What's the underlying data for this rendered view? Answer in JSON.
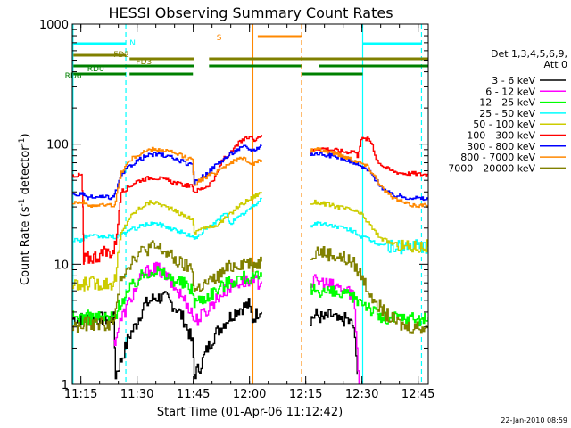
{
  "chart_data": {
    "type": "line",
    "title": "HESSI Observing Summary Count Rates",
    "xlabel": "Start Time (01-Apr-06 11:12:42)",
    "ylabel_main": "Count Rate (s",
    "ylabel_sup": "-1",
    "ylabel_mid": " detector",
    "ylabel_sup2": "-1",
    "ylabel_end": ")",
    "footer": "22-Jan-2010 08:59",
    "y_scale": "log",
    "ylim": [
      1,
      1000
    ],
    "xlim_min": [
      0,
      95
    ],
    "x_ticks": [
      {
        "m": 2.3,
        "label": "11:15"
      },
      {
        "m": 17.3,
        "label": "11:30"
      },
      {
        "m": 32.3,
        "label": "11:45"
      },
      {
        "m": 47.3,
        "label": "12:00"
      },
      {
        "m": 62.3,
        "label": "12:15"
      },
      {
        "m": 77.3,
        "label": "12:30"
      },
      {
        "m": 92.3,
        "label": "12:45"
      }
    ],
    "y_ticks": [
      {
        "v": 1,
        "label": "1"
      },
      {
        "v": 10,
        "label": "10"
      },
      {
        "v": 100,
        "label": "100"
      },
      {
        "v": 1000,
        "label": "1000"
      }
    ],
    "legend_title": [
      "Det 1,3,4,5,6,9,",
      "Att 0"
    ],
    "legend_placement": "right",
    "series": [
      {
        "name": "3 - 6 keV",
        "color": "#000000",
        "segments": [
          {
            "x": [
              0,
              11,
              11.5,
              13,
              15,
              17,
              19,
              22,
              25,
              28,
              30,
              32,
              32.5,
              34,
              36,
              38,
              41,
              44,
              47,
              48,
              50,
              50.5
            ],
            "y": [
              3.5,
              3.5,
              1.2,
              1.6,
              2.5,
              3.2,
              4.5,
              5.3,
              5.2,
              4.2,
              3.3,
              2.2,
              1.2,
              1.4,
              2.0,
              2.6,
              3.4,
              4.2,
              4.6,
              3.5,
              4.2,
              4.0
            ]
          },
          {
            "x": [
              63.5,
              65,
              67,
              69,
              71,
              73,
              75,
              76
            ],
            "y": [
              3.5,
              3.8,
              3.5,
              3.8,
              3.3,
              3.5,
              3.0,
              1.2
            ]
          }
        ]
      },
      {
        "name": "6 - 12 keV",
        "color": "#ff00ff",
        "segments": [
          {
            "x": [
              11,
              13,
              15,
              17,
              19,
              21,
              23,
              25,
              27,
              29,
              31,
              32,
              32.5,
              34,
              36,
              38,
              40,
              42,
              44,
              46,
              48,
              50.5
            ],
            "y": [
              2.2,
              3.5,
              4.8,
              6.5,
              8.2,
              9.2,
              9.0,
              8.0,
              6.5,
              5.5,
              4.5,
              3.8,
              3.4,
              3.6,
              4.2,
              5.0,
              5.8,
              6.5,
              7.0,
              7.2,
              7.0,
              7.2
            ]
          },
          {
            "x": [
              63.5,
              65,
              67,
              69,
              71,
              73,
              75,
              76.5
            ],
            "y": [
              7.0,
              7.2,
              7.0,
              6.6,
              6.4,
              6.0,
              5.8,
              1.0
            ]
          }
        ]
      },
      {
        "name": "12 - 25 keV",
        "color": "#00ff00",
        "segments": [
          {
            "x": [
              0,
              11,
              13,
              15,
              17,
              19,
              21,
              23,
              25,
              27,
              29,
              31,
              32,
              32.5,
              34,
              36,
              38,
              40,
              42,
              44,
              46,
              48,
              50.5
            ],
            "y": [
              3.6,
              3.6,
              5.0,
              6.0,
              7.2,
              8.2,
              9.0,
              8.7,
              8.0,
              7.5,
              7.0,
              6.5,
              6.0,
              5.0,
              5.0,
              5.5,
              6.0,
              6.6,
              7.2,
              7.6,
              7.8,
              7.5,
              7.8
            ]
          },
          {
            "x": [
              63.5,
              65,
              67,
              69,
              71,
              73,
              75,
              77,
              79,
              81,
              83,
              85,
              87,
              89,
              91,
              93,
              95
            ],
            "y": [
              6.0,
              6.2,
              6.0,
              5.8,
              5.6,
              5.4,
              5.2,
              5.0,
              4.5,
              3.8,
              3.5,
              3.5,
              3.6,
              3.5,
              3.6,
              3.5,
              3.6
            ]
          }
        ]
      },
      {
        "name": "25 - 50 keV",
        "color": "#00ffff",
        "segments": [
          {
            "x": [
              0,
              3,
              3.3,
              11,
              11.5,
              13,
              15,
              17,
              19,
              21,
              23,
              25,
              27,
              29,
              31,
              32,
              32.5,
              34,
              36,
              38,
              40,
              41,
              42,
              44,
              46,
              48,
              50.5
            ],
            "y": [
              16,
              16,
              17,
              17,
              16,
              18,
              19,
              20,
              21,
              22,
              21.5,
              20.5,
              19.5,
              18.5,
              17.5,
              17,
              16,
              18,
              20,
              22,
              25,
              27,
              22,
              24,
              27,
              30,
              35
            ]
          },
          {
            "x": [
              63.5,
              65,
              67,
              69,
              71,
              73,
              75,
              77,
              79,
              81,
              83,
              85,
              87,
              89,
              91,
              93,
              95
            ],
            "y": [
              21,
              22,
              21.5,
              21,
              20.5,
              19.5,
              19,
              17,
              16,
              15,
              14.5,
              14,
              14,
              14,
              14,
              14,
              14
            ]
          }
        ]
      },
      {
        "name": "50 - 100 keV",
        "color": "#cccc00",
        "segments": [
          {
            "x": [
              0,
              3,
              3.3,
              11,
              11.5,
              13,
              15,
              17,
              19,
              21,
              23,
              25,
              27,
              29,
              31,
              32,
              32.5,
              34,
              36,
              38,
              40,
              42,
              44,
              46,
              48,
              50.5
            ],
            "y": [
              6.5,
              6.5,
              7,
              7,
              8,
              18,
              24,
              28,
              31,
              33,
              32,
              30,
              28,
              26,
              24.5,
              24,
              18,
              20,
              20,
              21,
              23,
              26,
              30,
              33,
              36,
              40
            ]
          },
          {
            "x": [
              63.5,
              65,
              67,
              69,
              71,
              73,
              75,
              77,
              79,
              81,
              83,
              85,
              87,
              89,
              91,
              93,
              95
            ],
            "y": [
              32,
              33,
              32,
              31,
              30,
              29,
              28,
              26,
              22,
              18,
              16,
              15,
              14.5,
              14,
              14,
              14,
              14
            ]
          }
        ]
      },
      {
        "name": "100 - 300 keV",
        "color": "#ff0000",
        "segments": [
          {
            "x": [
              0,
              2.5,
              2.8,
              3,
              3.3,
              11,
              11.5,
              13,
              15,
              17,
              19,
              21,
              23,
              25,
              27,
              29,
              31,
              32,
              32.5,
              34,
              36,
              38,
              39.5,
              40.5,
              42,
              44,
              46,
              47.5,
              48.5,
              50.5
            ],
            "y": [
              55,
              55,
              30,
              10,
              11,
              13,
              15,
              40,
              44,
              49,
              51,
              53,
              52,
              50,
              48,
              46,
              45,
              44,
              40,
              42,
              45,
              52,
              68,
              78,
              82,
              100,
              110,
              115,
              110,
              120
            ]
          },
          {
            "x": [
              63.5,
              65,
              67,
              69,
              71,
              73,
              75,
              76,
              77,
              79,
              80,
              81,
              83,
              85,
              87,
              89,
              91,
              93,
              95
            ],
            "y": [
              85,
              92,
              92,
              90,
              88,
              86,
              88,
              80,
              110,
              110,
              100,
              75,
              65,
              60,
              58,
              57,
              57,
              56,
              56
            ]
          }
        ]
      },
      {
        "name": "300 - 800 keV",
        "color": "#0000ff",
        "segments": [
          {
            "x": [
              0,
              3,
              3.3,
              11,
              11.5,
              13,
              15,
              17,
              19,
              21,
              23,
              25,
              27,
              29,
              31,
              32,
              32.5,
              34,
              36,
              38,
              40,
              42,
              44,
              46,
              48,
              50.5
            ],
            "y": [
              38,
              38,
              36,
              36,
              40,
              55,
              65,
              72,
              78,
              82,
              82,
              80,
              76,
              72,
              68,
              66,
              48,
              52,
              58,
              66,
              74,
              82,
              90,
              95,
              88,
              98
            ]
          },
          {
            "x": [
              63.5,
              65,
              67,
              69,
              71,
              73,
              75,
              77,
              79,
              81,
              83,
              85,
              87,
              89,
              91,
              93,
              95
            ],
            "y": [
              82,
              84,
              82,
              80,
              78,
              75,
              70,
              65,
              60,
              50,
              42,
              38,
              37,
              36,
              36,
              35,
              35
            ]
          }
        ]
      },
      {
        "name": "800 - 7000 keV",
        "color": "#ff8800",
        "segments": [
          {
            "x": [
              0,
              3,
              3.3,
              11,
              11.5,
              13,
              15,
              17,
              19,
              21,
              23,
              25,
              27,
              29,
              31,
              32,
              32.5,
              34,
              36,
              38,
              40,
              42,
              44,
              46,
              48,
              50.5
            ],
            "y": [
              33,
              33,
              31,
              31,
              34,
              58,
              72,
              80,
              86,
              90,
              90,
              88,
              84,
              80,
              76,
              74,
              46,
              50,
              54,
              58,
              64,
              70,
              74,
              76,
              68,
              74
            ]
          },
          {
            "x": [
              63.5,
              65,
              67,
              69,
              71,
              73,
              75,
              77,
              79,
              81,
              83,
              85,
              87,
              89,
              91,
              93,
              95
            ],
            "y": [
              88,
              90,
              88,
              86,
              82,
              78,
              74,
              70,
              64,
              52,
              42,
              36,
              34,
              32,
              31,
              31,
              31
            ]
          }
        ]
      },
      {
        "name": "7000 - 20000 keV",
        "color": "#808000",
        "segments": [
          {
            "x": [
              0,
              3,
              3.3,
              11,
              11.5,
              13,
              15,
              17,
              19,
              21,
              23,
              25,
              27,
              29,
              31,
              32,
              32.5,
              34,
              36,
              38,
              40,
              42,
              44,
              46,
              48,
              50.5
            ],
            "y": [
              3.0,
              3.0,
              3.2,
              3.2,
              4.0,
              8.0,
              10,
              12,
              13,
              14,
              13.5,
              12.5,
              11,
              10,
              9.5,
              9,
              6.0,
              6.5,
              7.0,
              7.5,
              8.5,
              9.5,
              10,
              10.5,
              10,
              10.5
            ]
          },
          {
            "x": [
              63.5,
              65,
              67,
              69,
              71,
              73,
              75,
              77,
              79,
              81,
              83,
              85,
              87,
              89,
              91,
              93,
              95
            ],
            "y": [
              12,
              13,
              12.5,
              12,
              11.5,
              11,
              10,
              8,
              6,
              5,
              4,
              3.5,
              3.2,
              3.0,
              3.0,
              3.0,
              3.0
            ]
          }
        ]
      }
    ],
    "v_lines": [
      {
        "m": 0.2,
        "color": "#00ffff",
        "dashed": false
      },
      {
        "m": 14.3,
        "color": "#00ffff",
        "dashed": true
      },
      {
        "m": 48.2,
        "color": "#ff8800",
        "dashed": false
      },
      {
        "m": 61.2,
        "color": "#ff8800",
        "dashed": true
      },
      {
        "m": 77.5,
        "color": "#00ffff",
        "dashed": false
      },
      {
        "m": 93.2,
        "color": "#00ffff",
        "dashed": true
      }
    ],
    "flag_bars": [
      {
        "label": "N",
        "color": "#00ffff",
        "segments": [
          [
            0.3,
            14.3
          ],
          [
            77.6,
            93.2
          ]
        ],
        "y": 49,
        "label_m": 15.3,
        "label_y": 47
      },
      {
        "label": "S",
        "color": "#ff8800",
        "segments": [
          [
            49.5,
            61.1
          ]
        ],
        "y": 41,
        "label_m": 38.5,
        "label_y": 41
      },
      {
        "label": "FD2",
        "color": "#808000",
        "segments": [
          [
            0.3,
            14.3
          ]
        ],
        "y": 62,
        "label_m": 11,
        "label_y": 60
      },
      {
        "label": "FD3",
        "color": "#808000",
        "segments": [
          [
            15.3,
            32.5
          ],
          [
            36.5,
            95
          ]
        ],
        "y": 66,
        "label_m": 17,
        "label_y": 68
      },
      {
        "label": "RD0",
        "color": "#008000",
        "segments": [
          [
            0.3,
            32.5
          ],
          [
            36.5,
            61.1
          ],
          [
            65.8,
            95
          ]
        ],
        "y": 74,
        "label_m": 4,
        "label_y": 76
      },
      {
        "label": "RD6",
        "color": "#008000",
        "segments": [
          [
            0.3,
            14.3
          ],
          [
            15.3,
            32.2
          ],
          [
            61.3,
            77.5
          ]
        ],
        "y": 83,
        "label_m": -2,
        "label_y": 84
      }
    ]
  }
}
